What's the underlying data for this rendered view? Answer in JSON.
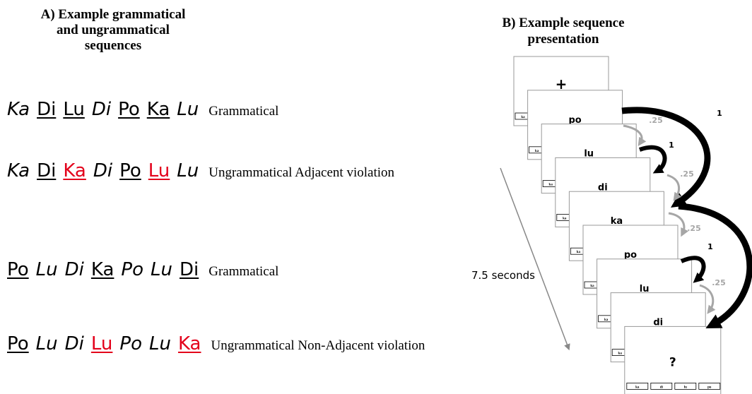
{
  "panel_a": {
    "title": [
      "A) Example grammatical",
      "and ungrammatical",
      "sequences"
    ],
    "sequences": [
      {
        "tokens": [
          {
            "text": "Ka",
            "style": "italic"
          },
          {
            "text": "Di",
            "style": "underline"
          },
          {
            "text": "Lu",
            "style": "underline"
          },
          {
            "text": "Di",
            "style": "italic"
          },
          {
            "text": "Po",
            "style": "underline"
          },
          {
            "text": "Ka",
            "style": "underline"
          },
          {
            "text": "Lu",
            "style": "italic"
          }
        ],
        "label": "Grammatical"
      },
      {
        "tokens": [
          {
            "text": "Ka",
            "style": "italic"
          },
          {
            "text": "Di",
            "style": "underline"
          },
          {
            "text": "Ka",
            "style": "underline",
            "color": "#e3001b"
          },
          {
            "text": "Di",
            "style": "italic"
          },
          {
            "text": "Po",
            "style": "underline"
          },
          {
            "text": "Lu",
            "style": "underline",
            "color": "#e3001b"
          },
          {
            "text": "Lu",
            "style": "italic"
          }
        ],
        "label": "Ungrammatical  Adjacent violation"
      },
      {
        "tokens": [
          {
            "text": "Po",
            "style": "underline"
          },
          {
            "text": "Lu",
            "style": "italic"
          },
          {
            "text": "Di",
            "style": "italic"
          },
          {
            "text": "Ka",
            "style": "underline"
          },
          {
            "text": "Po",
            "style": "italic"
          },
          {
            "text": "Lu",
            "style": "italic"
          },
          {
            "text": "Di",
            "style": "underline"
          }
        ],
        "label": "Grammatical"
      },
      {
        "tokens": [
          {
            "text": "Po",
            "style": "underline"
          },
          {
            "text": "Lu",
            "style": "italic"
          },
          {
            "text": "Di",
            "style": "italic"
          },
          {
            "text": "Lu",
            "style": "underline",
            "color": "#e3001b"
          },
          {
            "text": "Po",
            "style": "italic"
          },
          {
            "text": "Lu",
            "style": "italic"
          },
          {
            "text": "Ka",
            "style": "underline",
            "color": "#e3001b"
          }
        ],
        "label": "Ungrammatical Non-Adjacent violation"
      }
    ]
  },
  "panel_b": {
    "title": [
      "B) Example sequence presentation"
    ],
    "title_lines": [
      "B) Example sequence",
      "presentation"
    ],
    "frames": [
      {
        "stimulus": "+",
        "buttons": [
          "ka"
        ]
      },
      {
        "stimulus": "po",
        "buttons": [
          "ka"
        ]
      },
      {
        "stimulus": "lu",
        "buttons": [
          "ka"
        ]
      },
      {
        "stimulus": "di",
        "buttons": [
          "ka"
        ]
      },
      {
        "stimulus": "ka",
        "buttons": [
          "ka"
        ]
      },
      {
        "stimulus": "po",
        "buttons": [
          "ka"
        ]
      },
      {
        "stimulus": "lu",
        "buttons": [
          "ka"
        ]
      },
      {
        "stimulus": "di",
        "buttons": [
          "ka"
        ]
      },
      {
        "stimulus": "?",
        "buttons": [
          "ka",
          "di",
          "lu",
          "po"
        ]
      }
    ],
    "arrows": [
      {
        "label": "1",
        "color": "#000000"
      },
      {
        "label": ".25",
        "color": "#a6a6a6"
      },
      {
        "label": "1",
        "color": "#000000"
      },
      {
        "label": ".25",
        "color": "#a6a6a6"
      },
      {
        "label": ".25",
        "color": "#a6a6a6"
      },
      {
        "color": "#000000"
      },
      {
        "label": "1",
        "color": "#000000"
      },
      {
        "label": ".25",
        "color": "#a6a6a6"
      }
    ],
    "duration": "7.5 seconds"
  }
}
